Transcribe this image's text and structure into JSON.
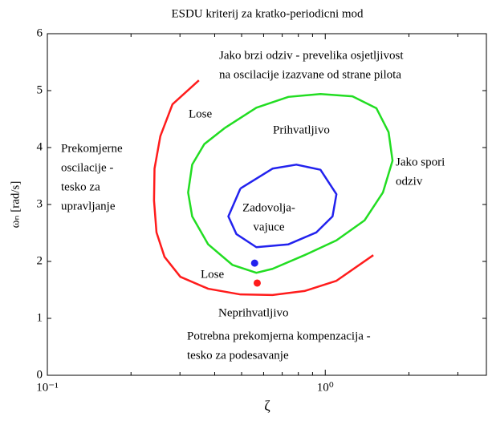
{
  "chart_data": {
    "type": "line",
    "title": "ESDU kriterij za kratko-periodicni mod",
    "xlabel": "ζ",
    "ylabel": "ωₙ [rad/s]",
    "xscale": "log",
    "xlim": [
      0.1,
      3.8
    ],
    "ylim": [
      0,
      6
    ],
    "xticks": [
      {
        "value": 0.1,
        "label": "10⁻¹"
      },
      {
        "value": 1,
        "label": "10⁰"
      }
    ],
    "xminor": [
      0.2,
      0.3,
      0.4,
      0.5,
      0.6,
      0.7,
      0.8,
      0.9,
      2,
      3
    ],
    "yticks": [
      0,
      1,
      2,
      3,
      4,
      5,
      6
    ],
    "series": [
      {
        "color": "#ff1c1c",
        "x": [
          0.351,
          0.282,
          0.255,
          0.243,
          0.242,
          0.247,
          0.264,
          0.301,
          0.379,
          0.495,
          0.646,
          0.842,
          1.097,
          1.489
        ],
        "values": [
          5.18,
          4.76,
          4.2,
          3.63,
          3.07,
          2.51,
          2.08,
          1.73,
          1.52,
          1.42,
          1.41,
          1.48,
          1.66,
          2.11
        ]
      },
      {
        "color": "#22dd22",
        "x": [
          0.434,
          0.565,
          0.737,
          0.961,
          1.253,
          1.528,
          1.69,
          1.746,
          1.612,
          1.384,
          1.097,
          0.842,
          0.646,
          0.565,
          0.463,
          0.379,
          0.332,
          0.321,
          0.332,
          0.367,
          0.434
        ],
        "values": [
          4.34,
          4.7,
          4.89,
          4.94,
          4.9,
          4.69,
          4.27,
          3.77,
          3.21,
          2.72,
          2.37,
          2.11,
          1.87,
          1.8,
          1.94,
          2.3,
          2.79,
          3.21,
          3.7,
          4.06,
          4.34
        ]
      },
      {
        "color": "#2222ee",
        "x": [
          0.495,
          0.646,
          0.787,
          0.961,
          1.097,
          1.062,
          0.929,
          0.737,
          0.565,
          0.479,
          0.448,
          0.495
        ],
        "values": [
          3.28,
          3.63,
          3.7,
          3.61,
          3.18,
          2.79,
          2.51,
          2.3,
          2.25,
          2.48,
          2.79,
          3.28
        ]
      }
    ],
    "points": [
      {
        "color": "#2222ee",
        "x": 0.557,
        "y": 1.97
      },
      {
        "color": "#ff1c1c",
        "x": 0.569,
        "y": 1.62
      }
    ],
    "annotations": [
      {
        "lines": [
          "Jako brzi odziv - prevelika osjetljivost",
          "na oscilacije izazvane od strane pilota"
        ]
      },
      {
        "lines": [
          "Lose"
        ]
      },
      {
        "lines": [
          "Prihvatljivo"
        ]
      },
      {
        "lines": [
          "Prekomjerne",
          "oscilacije -",
          "tesko za",
          "upravljanje"
        ]
      },
      {
        "lines": [
          "Jako spori",
          "odziv"
        ]
      },
      {
        "lines": [
          "Zadovolja-",
          "vajuce"
        ]
      },
      {
        "lines": [
          "Lose"
        ]
      },
      {
        "lines": [
          "Neprihvatljivo"
        ]
      },
      {
        "lines": [
          "Potrebna prekomjerna kompenzacija -",
          "tesko za podesavanje"
        ]
      }
    ]
  }
}
